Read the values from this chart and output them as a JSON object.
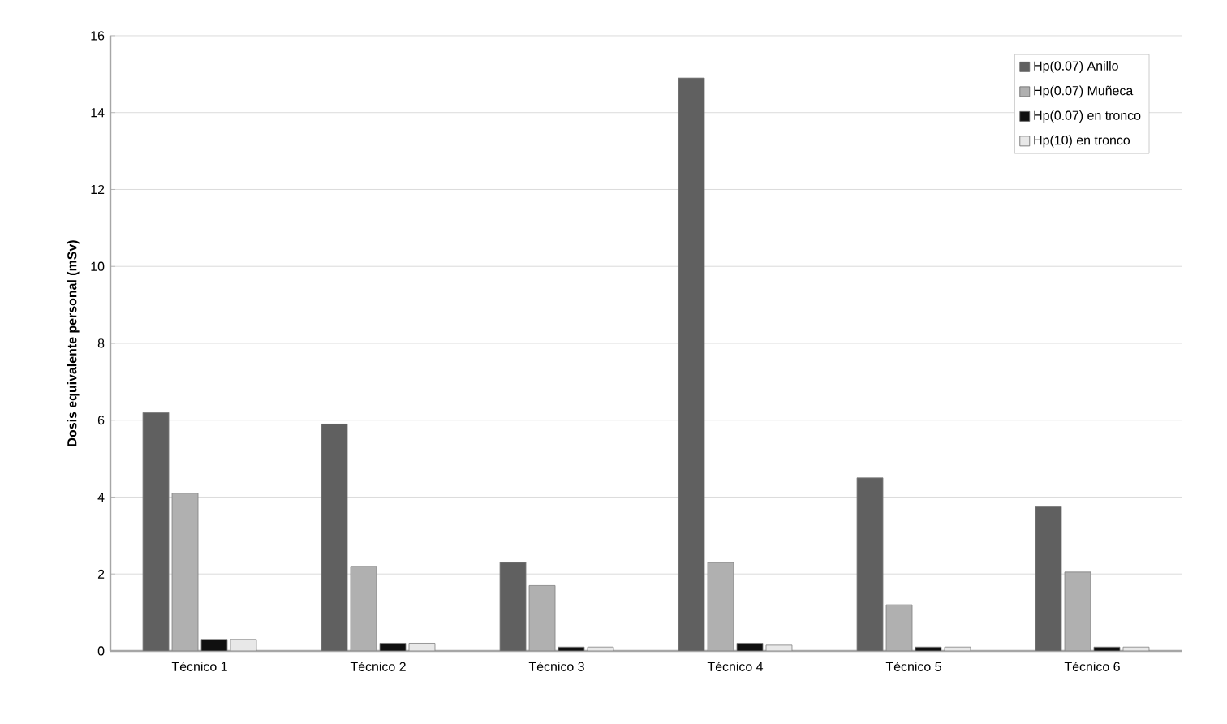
{
  "chart_data": {
    "type": "bar",
    "ylabel": "Dosis equivalente personal (mSv)",
    "categories": [
      "Técnico 1",
      "Técnico 2",
      "Técnico 3",
      "Técnico 4",
      "Técnico 5",
      "Técnico 6"
    ],
    "series": [
      {
        "name": "Hp(0.07) Anillo",
        "color": "#606060",
        "values": [
          6.2,
          5.9,
          2.3,
          14.9,
          4.5,
          3.75
        ]
      },
      {
        "name": "Hp(0.07) Muñeca",
        "color": "#b0b0b0",
        "values": [
          4.1,
          2.2,
          1.7,
          2.3,
          1.2,
          2.05
        ]
      },
      {
        "name": "Hp(0.07) en tronco",
        "color": "#101010",
        "values": [
          0.3,
          0.2,
          0.1,
          0.2,
          0.1,
          0.1
        ]
      },
      {
        "name": "Hp(10) en tronco",
        "color": "#e8e8e8",
        "values": [
          0.3,
          0.2,
          0.1,
          0.15,
          0.1,
          0.1
        ]
      }
    ],
    "ylim": [
      0,
      16
    ],
    "yticks": [
      0,
      2,
      4,
      6,
      8,
      10,
      12,
      14,
      16
    ],
    "grid": "y",
    "legend": "top right"
  }
}
